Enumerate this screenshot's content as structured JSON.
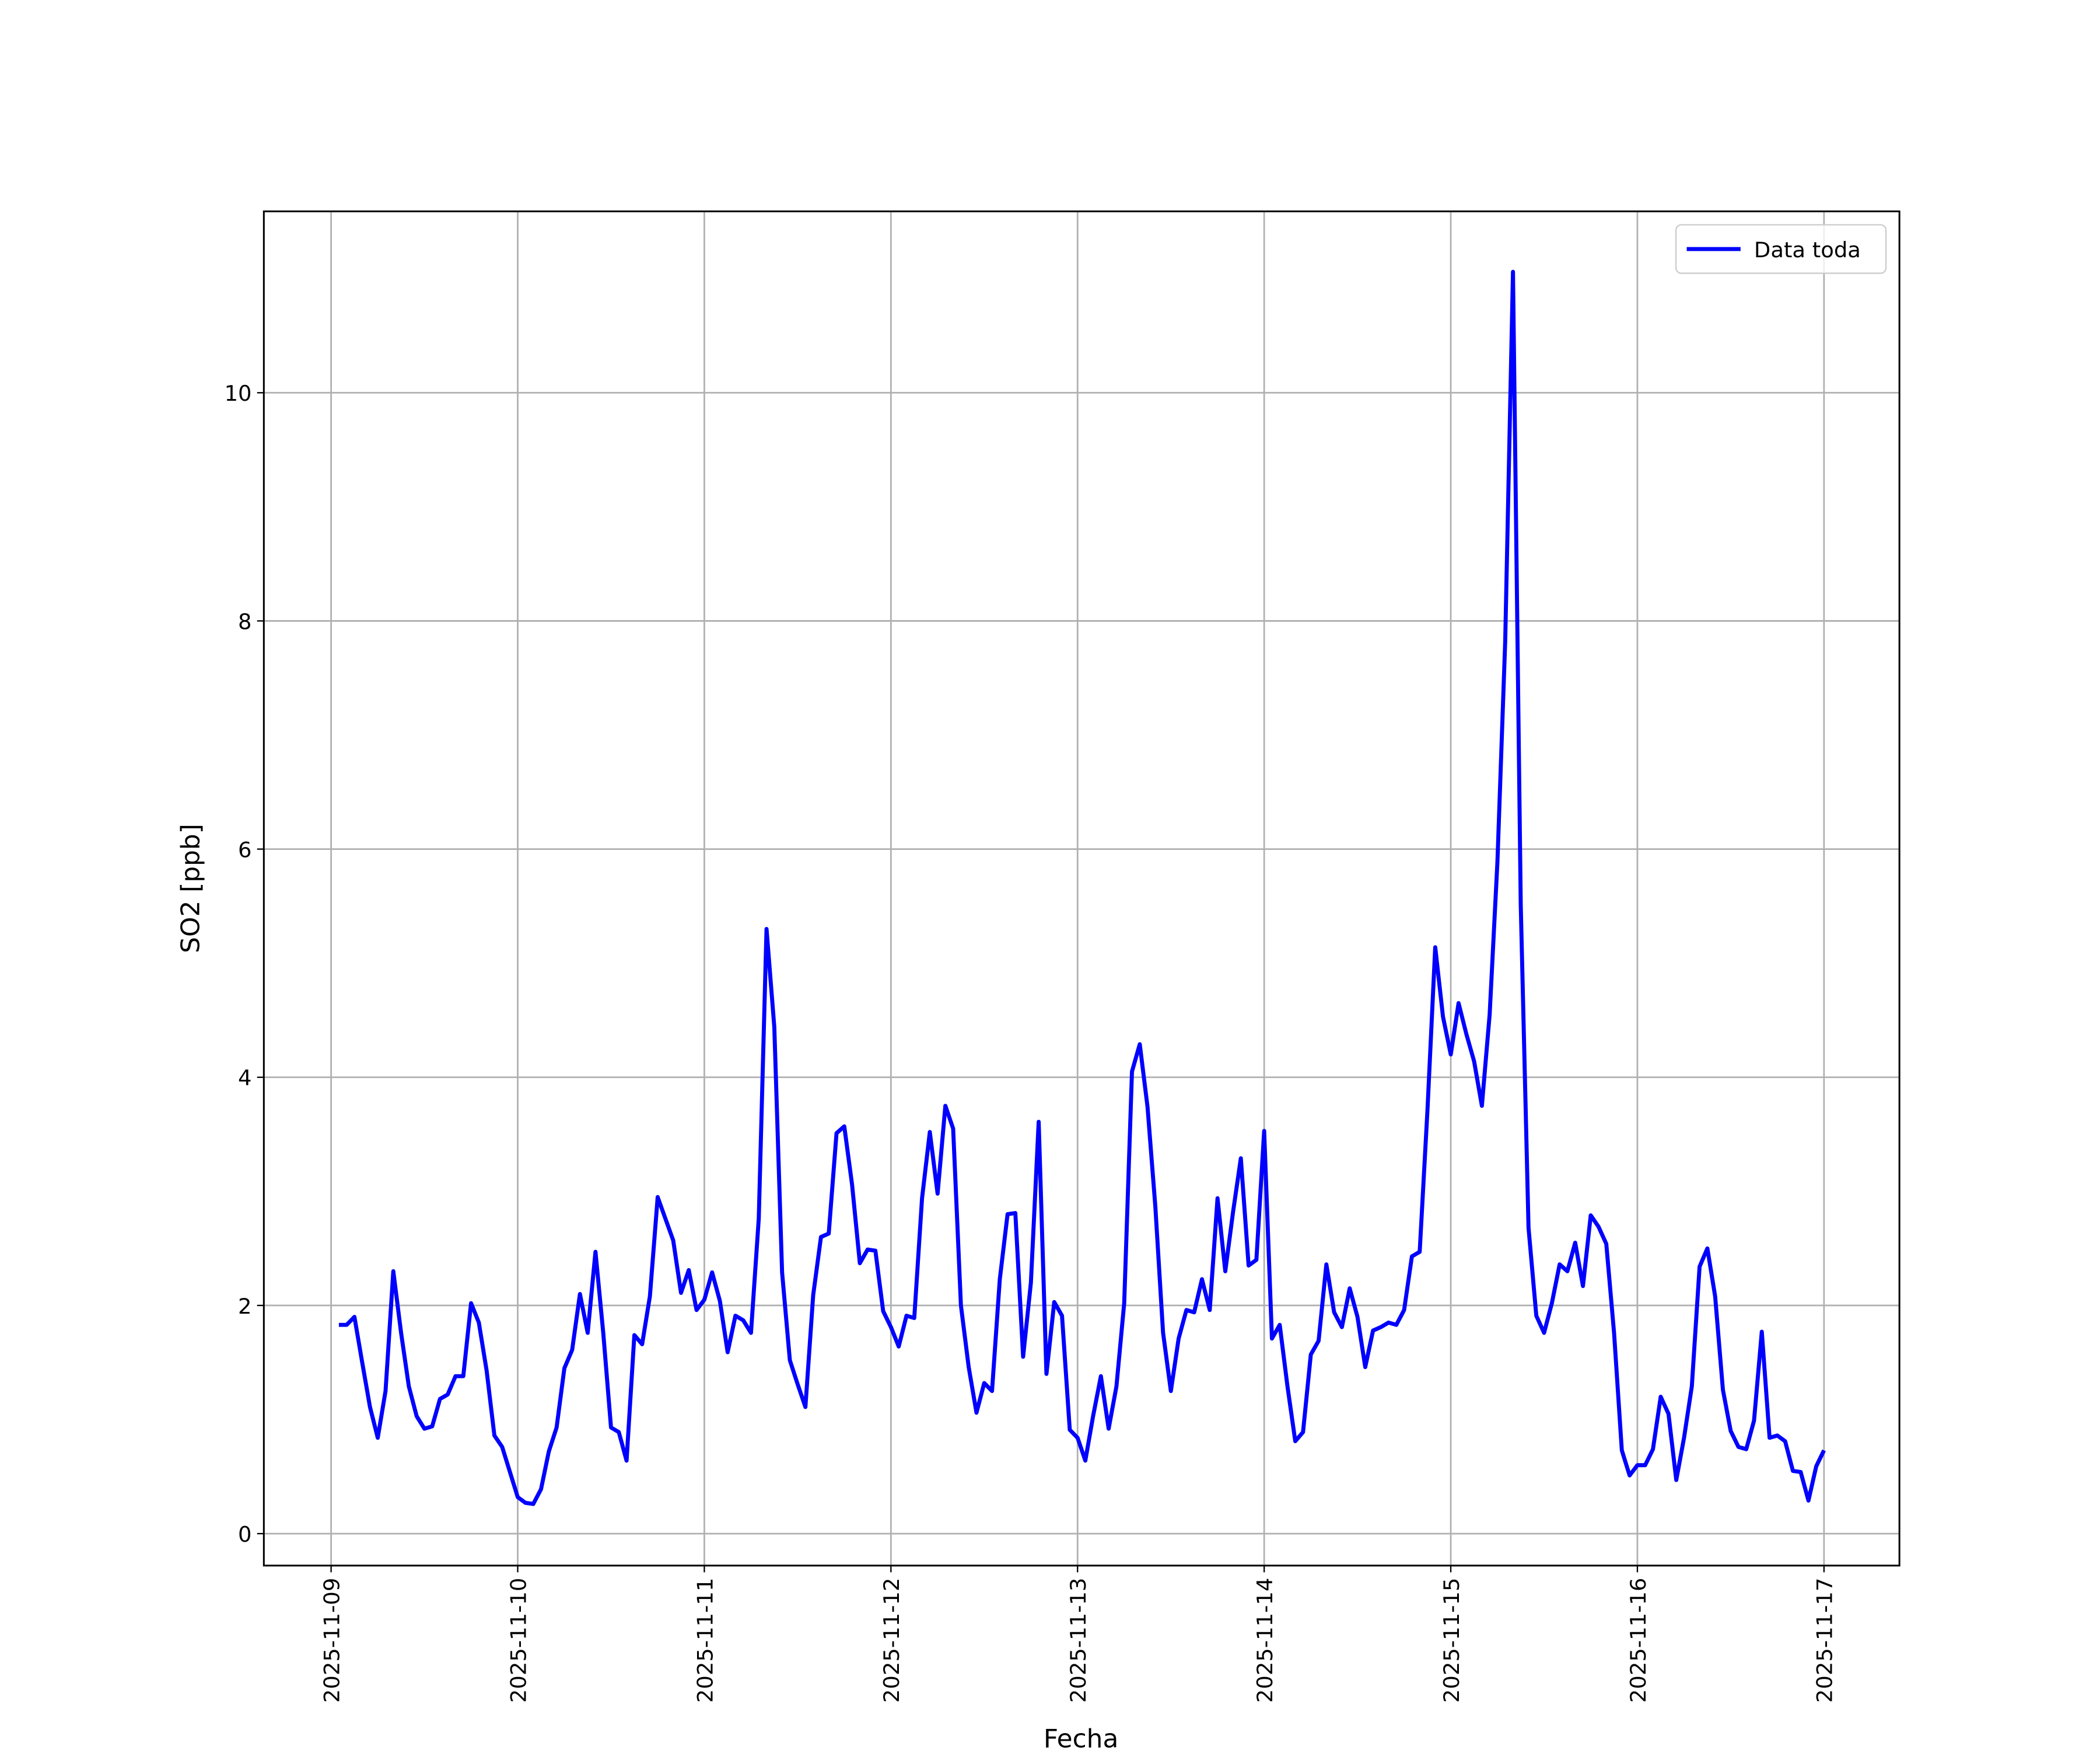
{
  "chart_data": {
    "type": "line",
    "x_label": "Fecha",
    "y_label": "SO2 [ppb]",
    "x": [
      1,
      2,
      3,
      4,
      5,
      6,
      7,
      8,
      9,
      10,
      11,
      12,
      13,
      14,
      15,
      16,
      17,
      18,
      19,
      20,
      21,
      22,
      23,
      24,
      25,
      26,
      27,
      28,
      29,
      30,
      31,
      32,
      33,
      34,
      35,
      36,
      37,
      38,
      39,
      40,
      41,
      42,
      43,
      44,
      45,
      46,
      47,
      48,
      49,
      50,
      51,
      52,
      53,
      54,
      55,
      56,
      57,
      58,
      59,
      60,
      61,
      62,
      63,
      64,
      65,
      66,
      67,
      68,
      69,
      70,
      71,
      72,
      73,
      74,
      75,
      76,
      77,
      78,
      79,
      80,
      81,
      82,
      83,
      84,
      85,
      86,
      87,
      88,
      89,
      90,
      91,
      92,
      93,
      94,
      95,
      96,
      97,
      98,
      99,
      100,
      101,
      102,
      103,
      104,
      105,
      106,
      107,
      108,
      109,
      110,
      111,
      112,
      113,
      114,
      115,
      116,
      117,
      118,
      119,
      120,
      121,
      122,
      123,
      124,
      125,
      126,
      127,
      128,
      129,
      130,
      131,
      132,
      133,
      134,
      135,
      136,
      137,
      138,
      139,
      140,
      141,
      142,
      143,
      144,
      145,
      146,
      147,
      148,
      149,
      150,
      151,
      152,
      153,
      154,
      155,
      156,
      157,
      158,
      159,
      160,
      161,
      162,
      163,
      164,
      165,
      166,
      167,
      168,
      169,
      170,
      171,
      172,
      173,
      174,
      175,
      176,
      177,
      178,
      179,
      180,
      181,
      182,
      183,
      184,
      185,
      186,
      187,
      188,
      189,
      190,
      191,
      192
    ],
    "series": [
      {
        "name": "Data toda",
        "color": "#0000ff",
        "values": [
          1.83,
          1.83,
          1.9,
          1.5,
          1.11,
          0.84,
          1.25,
          2.3,
          1.76,
          1.29,
          1.03,
          0.92,
          0.94,
          1.18,
          1.22,
          1.38,
          1.38,
          2.02,
          1.85,
          1.43,
          0.86,
          0.76,
          0.54,
          0.32,
          0.27,
          0.26,
          0.39,
          0.72,
          0.93,
          1.45,
          1.61,
          2.1,
          1.76,
          2.47,
          1.76,
          0.93,
          0.89,
          0.64,
          1.74,
          1.66,
          2.08,
          2.95,
          2.76,
          2.57,
          2.11,
          2.31,
          1.96,
          2.05,
          2.29,
          2.04,
          1.59,
          1.91,
          1.87,
          1.76,
          2.76,
          5.3,
          4.44,
          2.29,
          1.52,
          1.31,
          1.11,
          2.09,
          2.6,
          2.63,
          3.51,
          3.57,
          3.06,
          2.37,
          2.49,
          2.48,
          1.95,
          1.81,
          1.64,
          1.91,
          1.89,
          2.94,
          3.52,
          2.98,
          3.75,
          3.55,
          2.0,
          1.46,
          1.06,
          1.32,
          1.25,
          2.23,
          2.8,
          2.81,
          1.55,
          2.2,
          3.61,
          1.4,
          2.03,
          1.91,
          0.91,
          0.84,
          0.64,
          1.03,
          1.38,
          0.92,
          1.29,
          2.02,
          4.05,
          4.29,
          3.74,
          2.87,
          1.76,
          1.25,
          1.71,
          1.96,
          1.94,
          2.23,
          1.96,
          2.94,
          2.3,
          2.82,
          3.29,
          2.35,
          2.4,
          3.53,
          1.71,
          1.83,
          1.29,
          0.81,
          0.89,
          1.57,
          1.69,
          2.36,
          1.94,
          1.81,
          2.15,
          1.9,
          1.46,
          1.78,
          1.81,
          1.85,
          1.83,
          1.96,
          2.43,
          2.47,
          3.71,
          5.14,
          4.53,
          4.2,
          4.65,
          4.38,
          4.14,
          3.75,
          4.55,
          5.89,
          7.82,
          11.06,
          5.51,
          2.68,
          1.91,
          1.76,
          2.02,
          2.36,
          2.3,
          2.55,
          2.17,
          2.79,
          2.69,
          2.54,
          1.76,
          0.73,
          0.51,
          0.6,
          0.6,
          0.74,
          1.2,
          1.05,
          0.47,
          0.84,
          1.29,
          2.34,
          2.5,
          2.08,
          1.26,
          0.9,
          0.76,
          0.74,
          0.99,
          1.77,
          0.84,
          0.86,
          0.81,
          0.55,
          0.54,
          0.29,
          0.59,
          0.73
        ]
      }
    ],
    "xlim": [
      -8.65,
      201.7
    ],
    "xticks": [
      {
        "value": 0,
        "label": "2025-11-09"
      },
      {
        "value": 24,
        "label": "2025-11-10"
      },
      {
        "value": 48,
        "label": "2025-11-11"
      },
      {
        "value": 72,
        "label": "2025-11-12"
      },
      {
        "value": 96,
        "label": "2025-11-13"
      },
      {
        "value": 120,
        "label": "2025-11-14"
      },
      {
        "value": 144,
        "label": "2025-11-15"
      },
      {
        "value": 168,
        "label": "2025-11-16"
      },
      {
        "value": 192,
        "label": "2025-11-17"
      }
    ],
    "ylim": [
      -0.28,
      11.59
    ],
    "yticks": [
      0,
      2,
      4,
      6,
      8,
      10
    ],
    "grid": true,
    "legend": "upper right"
  }
}
